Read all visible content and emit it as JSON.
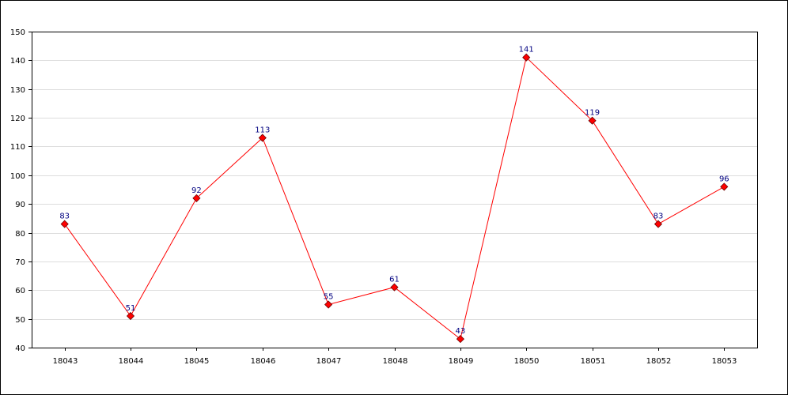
{
  "chart_data": {
    "type": "line",
    "title": "",
    "xlabel": "",
    "ylabel": "",
    "categories": [
      "18043",
      "18044",
      "18045",
      "18046",
      "18047",
      "18048",
      "18049",
      "18050",
      "18051",
      "18052",
      "18053"
    ],
    "series": [
      {
        "values": [
          83,
          51,
          92,
          113,
          55,
          61,
          43,
          141,
          119,
          83,
          96
        ],
        "color": "#ff0000",
        "marker": "diamond",
        "marker_color": "#ff0000"
      }
    ],
    "ylim": [
      40,
      150
    ],
    "yticks": [
      40,
      50,
      60,
      70,
      80,
      90,
      100,
      110,
      120,
      130,
      140,
      150
    ],
    "grid": true,
    "data_labels": true,
    "legend": "none"
  }
}
